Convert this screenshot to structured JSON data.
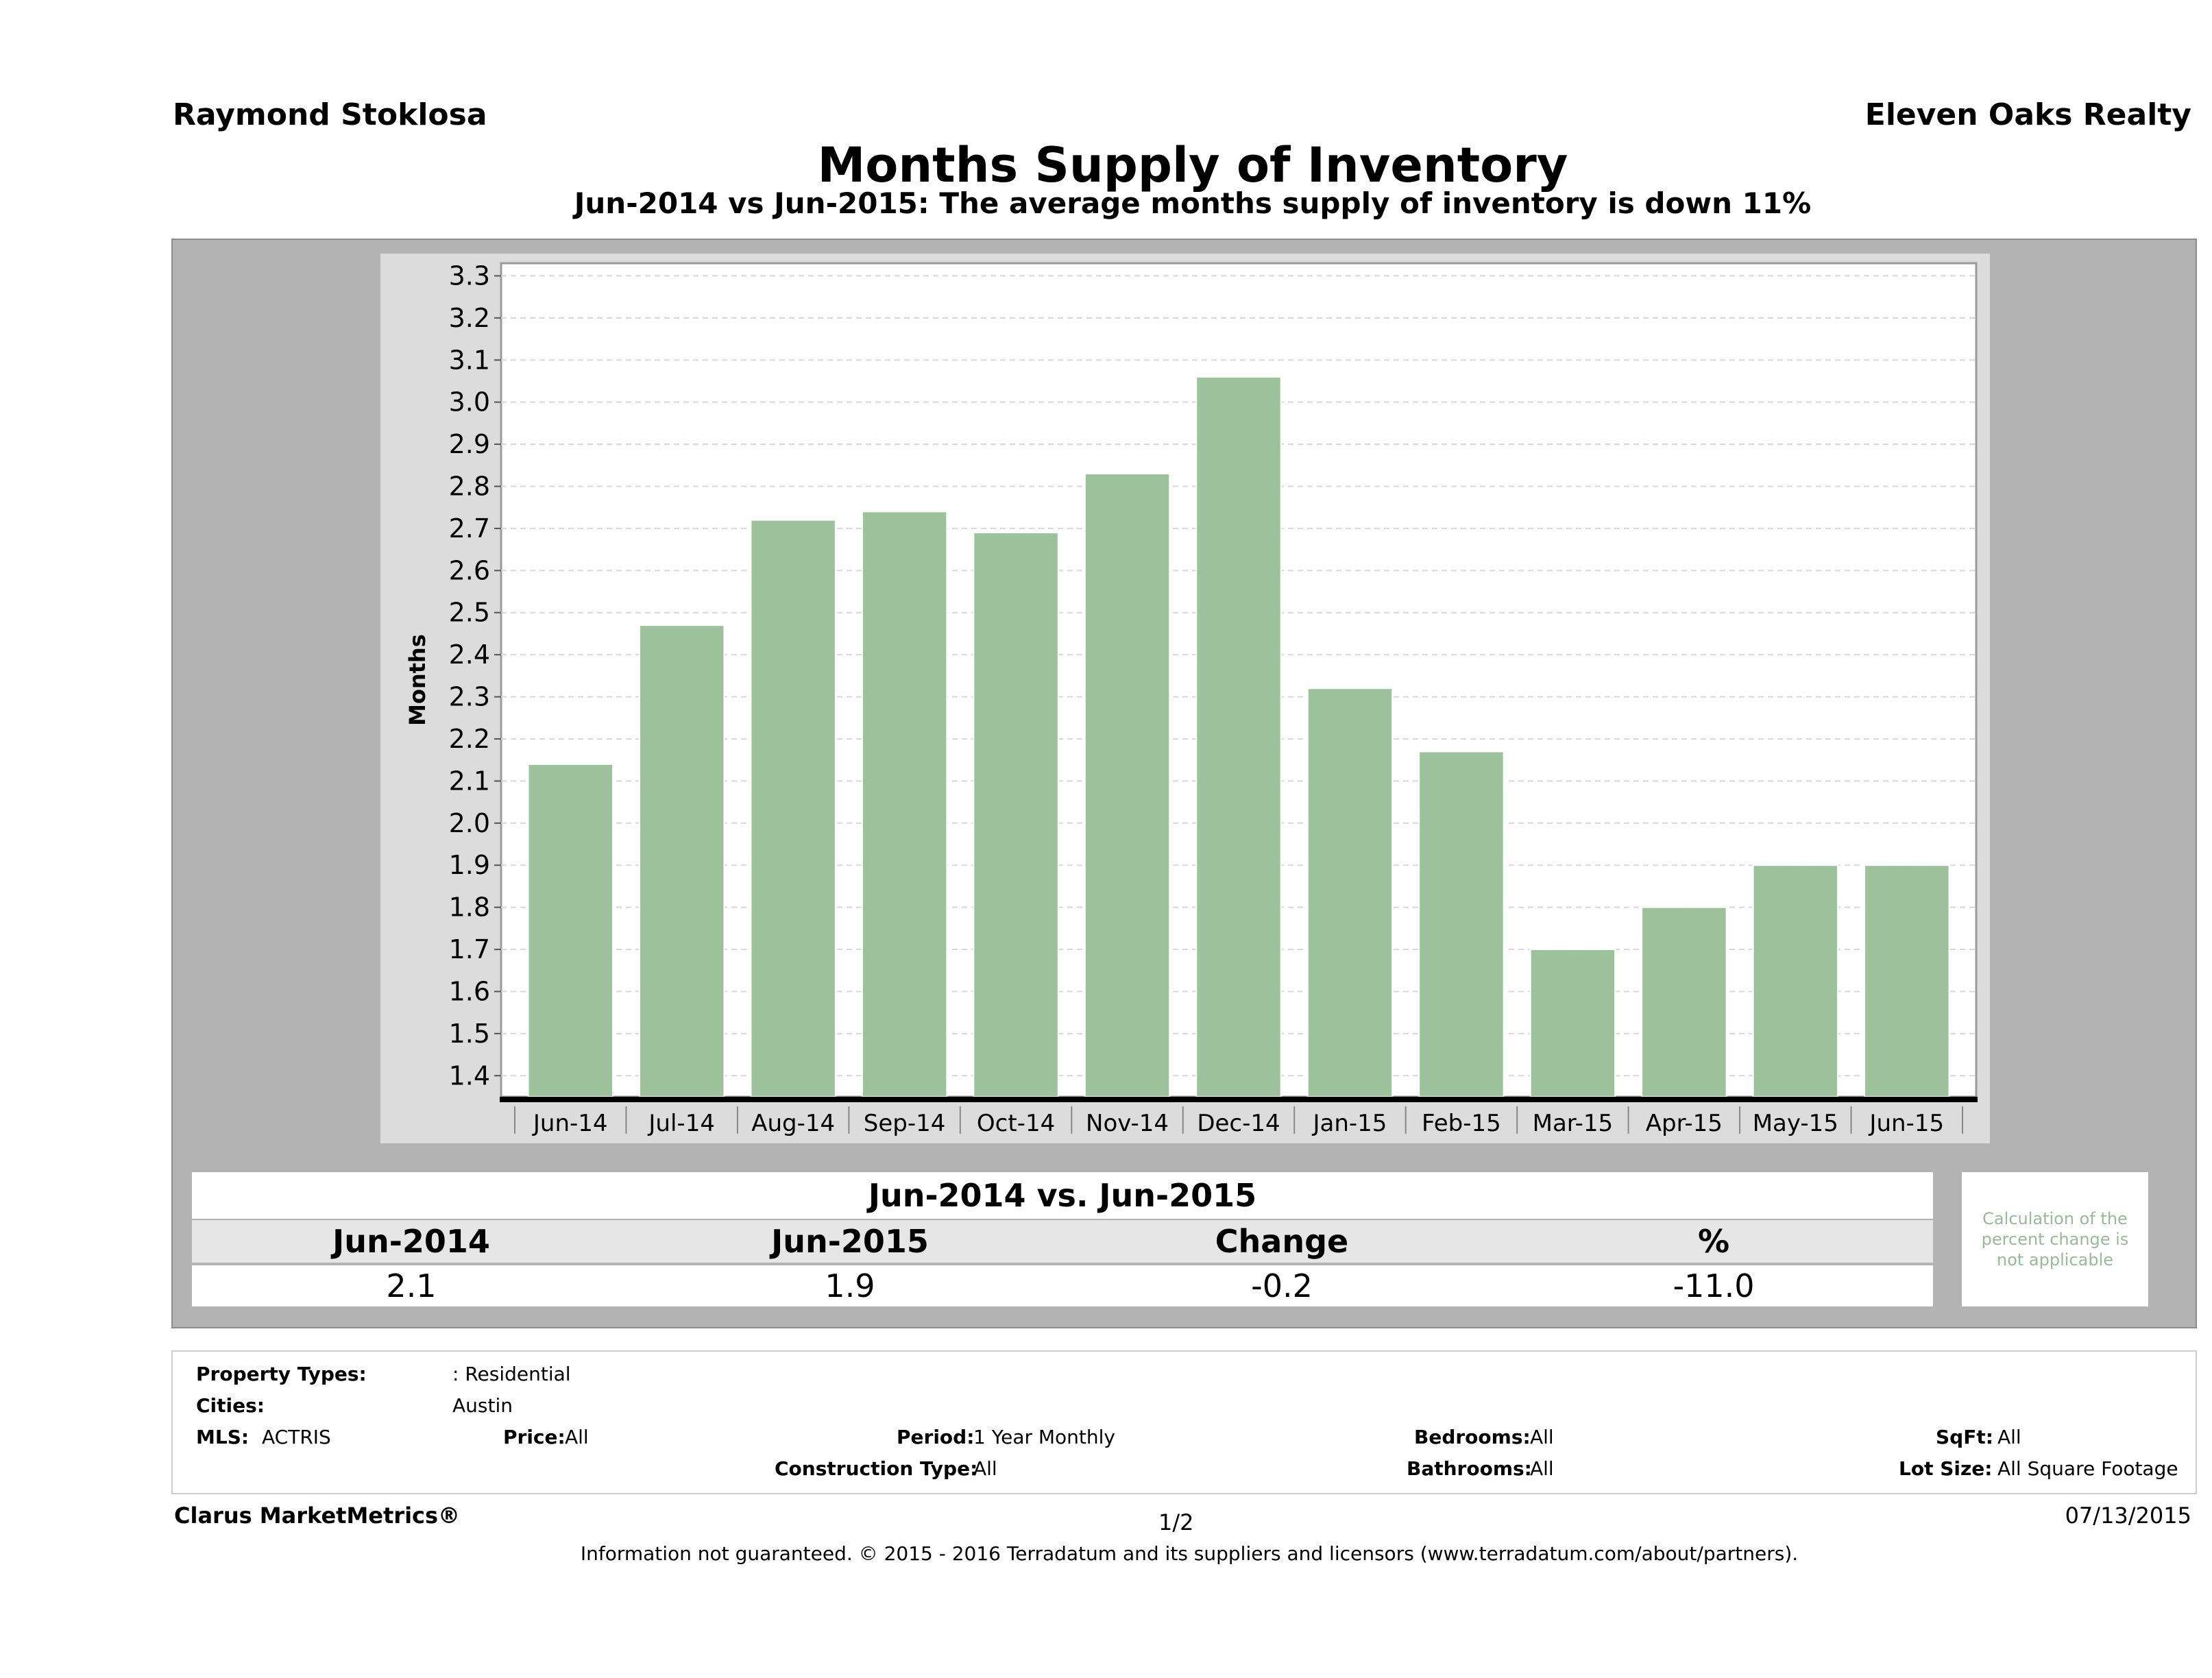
{
  "header": {
    "agent": "Raymond Stoklosa",
    "broker": "Eleven Oaks Realty"
  },
  "chart_data": {
    "type": "bar",
    "title": "Months Supply of Inventory",
    "subtitle": "Jun-2014 vs Jun-2015: The average months supply of inventory is down 11%",
    "ylabel": "Months",
    "xlabel": "",
    "ylim": [
      1.35,
      3.33
    ],
    "yticks": [
      "1.4",
      "1.5",
      "1.6",
      "1.7",
      "1.8",
      "1.9",
      "2.0",
      "2.1",
      "2.2",
      "2.3",
      "2.4",
      "2.5",
      "2.6",
      "2.7",
      "2.8",
      "2.9",
      "3.0",
      "3.1",
      "3.2",
      "3.3"
    ],
    "categories": [
      "Jun-14",
      "Jul-14",
      "Aug-14",
      "Sep-14",
      "Oct-14",
      "Nov-14",
      "Dec-14",
      "Jan-15",
      "Feb-15",
      "Mar-15",
      "Apr-15",
      "May-15",
      "Jun-15"
    ],
    "values": [
      2.14,
      2.47,
      2.72,
      2.74,
      2.69,
      2.83,
      3.06,
      2.32,
      2.17,
      1.7,
      1.8,
      1.9,
      1.9
    ],
    "bar_color": "#9dc19a",
    "grid": true,
    "legend": "none"
  },
  "summary": {
    "title": "Jun-2014 vs. Jun-2015",
    "headers": [
      "Jun-2014",
      "Jun-2015",
      "Change",
      "%"
    ],
    "values": [
      "2.1",
      "1.9",
      "-0.2",
      "-11.0"
    ],
    "note": "Calculation of the percent change is not applicable"
  },
  "filters": {
    "property_types_label": "Property Types:",
    "property_types": ": Residential",
    "cities_label": "Cities:",
    "cities": "Austin",
    "mls_label": "MLS:",
    "mls": "ACTRIS",
    "price_label": "Price:",
    "price": "All",
    "period_label": "Period:",
    "period": "1 Year Monthly",
    "construction_label": "Construction Type:",
    "construction": "All",
    "bedrooms_label": "Bedrooms:",
    "bedrooms": "All",
    "bathrooms_label": "Bathrooms:",
    "bathrooms": "All",
    "sqft_label": "SqFt:",
    "sqft": "All",
    "lot_label": "Lot Size:",
    "lot": "All Square Footage"
  },
  "footer": {
    "brand": "Clarus MarketMetrics®",
    "page": "1/2",
    "date": "07/13/2015",
    "copyright": "Information not guaranteed. © 2015 - 2016 Terradatum and its suppliers and licensors (www.terradatum.com/about/partners)."
  }
}
